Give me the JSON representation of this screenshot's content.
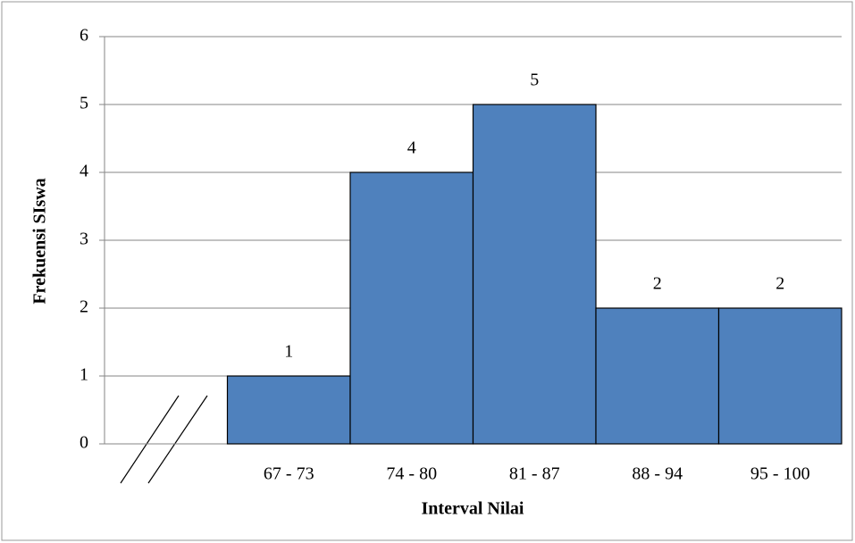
{
  "chart_data": {
    "type": "bar",
    "xlabel": "Interval Nilai",
    "ylabel": "Frekuensi SIswa",
    "categories": [
      null,
      "67 - 73",
      "74 - 80",
      "81 - 87",
      "88 - 94",
      "95 - 100"
    ],
    "values": [
      null,
      1,
      4,
      5,
      2,
      2
    ],
    "color": "#4f81bd",
    "ylim": [
      0,
      6
    ],
    "yticks": [
      0,
      1,
      2,
      3,
      4,
      5,
      6
    ],
    "grid": true
  }
}
